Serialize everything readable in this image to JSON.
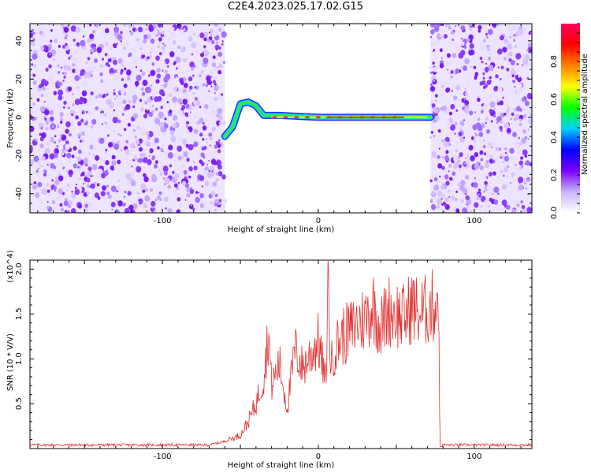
{
  "title": "C2E4.2023.025.17.02.G15",
  "chart_data": [
    {
      "type": "heatmap",
      "xlabel": "Height of straight line (km)",
      "ylabel": "Frequency (Hz)",
      "xlim": [
        -185,
        137
      ],
      "ylim": [
        -50,
        49
      ],
      "xticks": [
        -100,
        0,
        100
      ],
      "yticks": [
        -40,
        -20,
        0,
        20,
        40
      ],
      "colorbar": {
        "label": "Normalized spectral amplitude",
        "range": [
          0,
          1
        ],
        "ticks": [
          0.0,
          0.2,
          0.4,
          0.6,
          0.8
        ],
        "colors": [
          "#ffffff",
          "#c9b3ff",
          "#7a00ff",
          "#0000ff",
          "#00d0ff",
          "#00ff00",
          "#ffff00",
          "#ff8000",
          "#ff0000",
          "#ff0060"
        ]
      },
      "noise_regions": [
        [
          -185,
          -60
        ],
        [
          72,
          137
        ]
      ],
      "ridge_points": [
        {
          "x": -60,
          "y": -10
        },
        {
          "x": -55,
          "y": -5
        },
        {
          "x": -50,
          "y": 7
        },
        {
          "x": -45,
          "y": 8
        },
        {
          "x": -40,
          "y": 6
        },
        {
          "x": -35,
          "y": 1
        },
        {
          "x": -25,
          "y": 1
        },
        {
          "x": 0,
          "y": 0
        },
        {
          "x": 40,
          "y": 0
        },
        {
          "x": 72,
          "y": 0
        }
      ]
    },
    {
      "type": "line",
      "xlabel": "Height of straight line (km)",
      "ylabel": "SNR (10 * V/V)",
      "yscale_label": "(x10^4)",
      "xlim": [
        -185,
        137
      ],
      "ylim": [
        0,
        2.1
      ],
      "xticks": [
        -100,
        0,
        100
      ],
      "yticks": [
        0.5,
        1.0,
        1.5,
        2.0
      ],
      "color": "#e03030",
      "series": [
        {
          "values_x": [
            -185,
            -70,
            -60,
            -50,
            -45,
            -40,
            -35,
            -32,
            -30,
            -25,
            -20,
            -15,
            -10,
            -5,
            0,
            5,
            6,
            8,
            10,
            15,
            20,
            25,
            30,
            35,
            40,
            45,
            50,
            55,
            60,
            65,
            70,
            75,
            77,
            78,
            80,
            137
          ],
          "values_y": [
            0.04,
            0.04,
            0.08,
            0.15,
            0.3,
            0.5,
            0.8,
            1.3,
            0.7,
            0.95,
            0.45,
            1.1,
            0.9,
            1.05,
            1.2,
            0.7,
            2.1,
            0.9,
            1.1,
            1.25,
            1.3,
            1.4,
            1.45,
            1.6,
            1.35,
            1.55,
            1.5,
            1.45,
            1.6,
            1.5,
            1.55,
            1.6,
            1.75,
            0.02,
            0.04,
            0.04
          ]
        }
      ]
    }
  ]
}
